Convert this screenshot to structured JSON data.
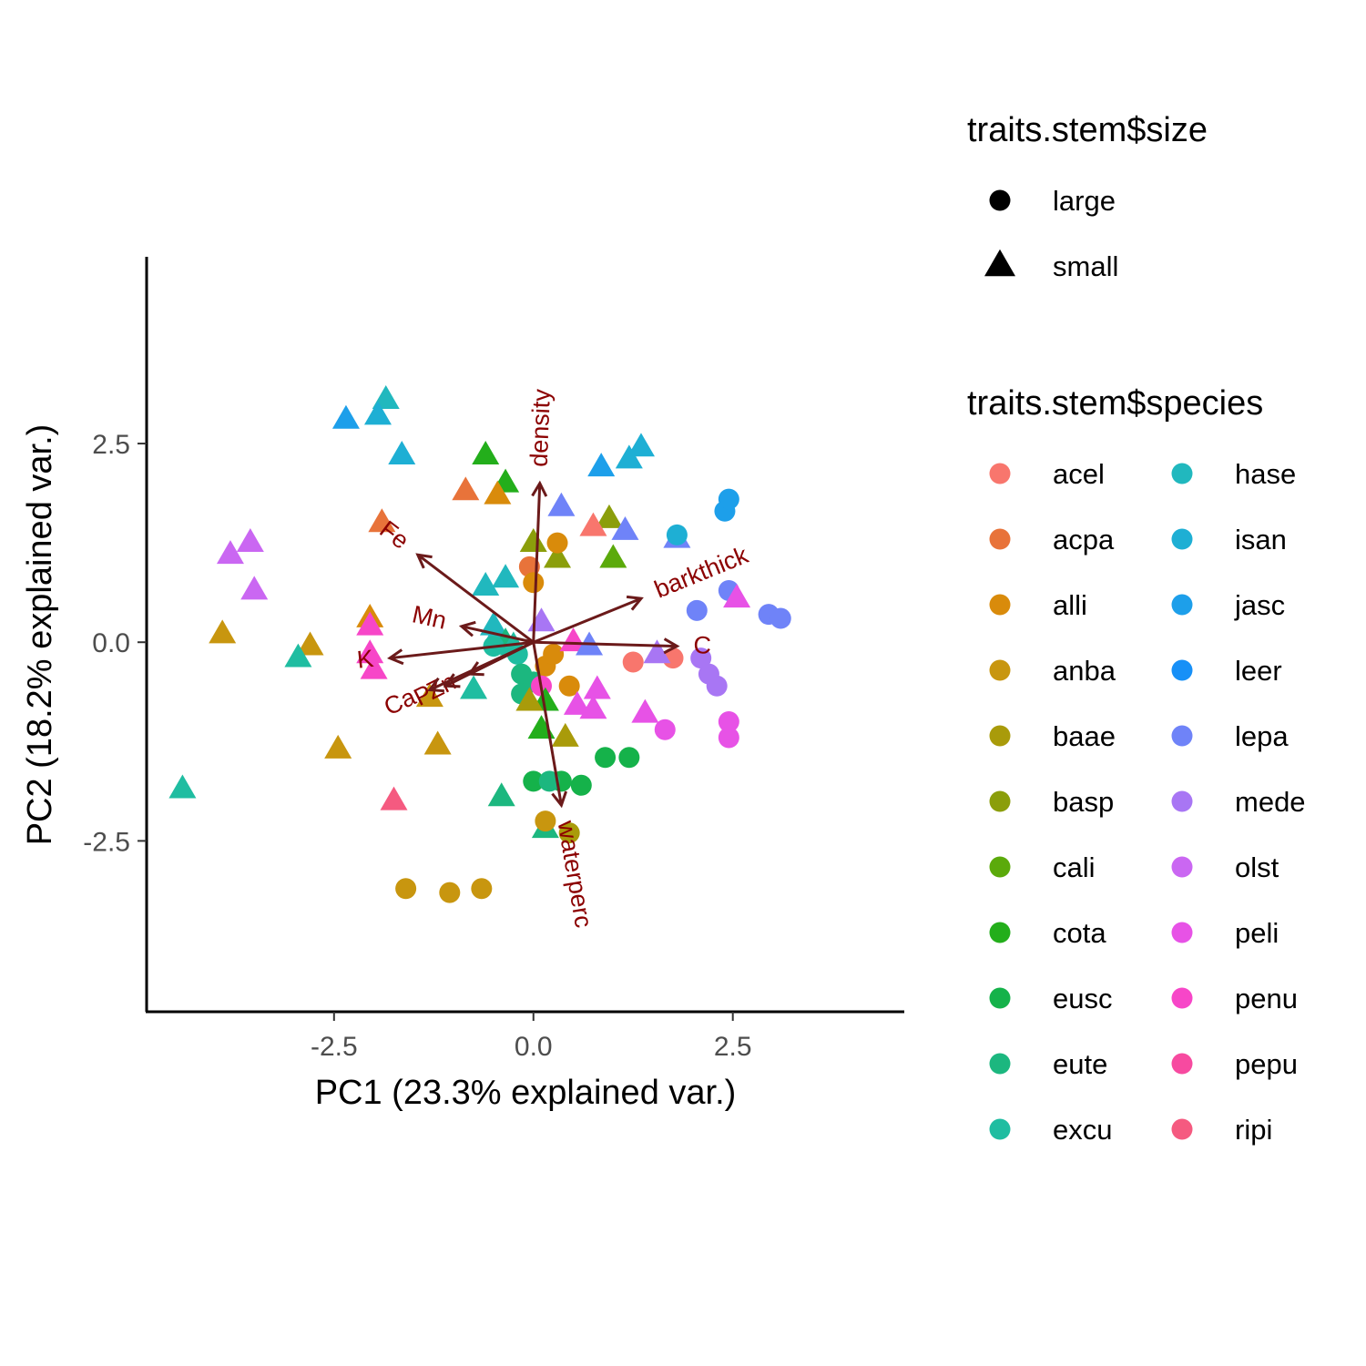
{
  "chart_data": {
    "type": "scatter",
    "title": "",
    "xlabel": "PC1 (23.3% explained var.)",
    "ylabel": "PC2 (18.2% explained var.)",
    "xlim": [
      -4.85,
      4.65
    ],
    "ylim": [
      -4.65,
      4.85
    ],
    "xticks": [
      -2.5,
      0.0,
      2.5
    ],
    "xtick_labels": [
      "-2.5",
      "0.0",
      "2.5"
    ],
    "yticks": [
      -2.5,
      0.0,
      2.5
    ],
    "ytick_labels": [
      "-2.5",
      "0.0",
      "2.5"
    ],
    "grid": false,
    "legend_position": "right",
    "size_legend": {
      "title": "traits.stem$size",
      "entries": [
        {
          "label": "large",
          "shape": "circle"
        },
        {
          "label": "small",
          "shape": "triangle"
        }
      ]
    },
    "species_legend": {
      "title": "traits.stem$species",
      "entries": [
        {
          "label": "acel",
          "color": "#F8766D"
        },
        {
          "label": "acpa",
          "color": "#E9842C"
        },
        {
          "label": "alli",
          "color": "#D69100"
        },
        {
          "label": "anba",
          "color": "#BC9D00"
        },
        {
          "label": "baae",
          "color": "#9CA700"
        },
        {
          "label": "basp",
          "color": "#6FB000"
        },
        {
          "label": "cali",
          "color": "#00B813"
        },
        {
          "label": "cota",
          "color": "#00BD61"
        },
        {
          "label": "eusc",
          "color": "#00C08E"
        },
        {
          "label": "eute",
          "color": "#00C0B4"
        },
        {
          "label": "excu",
          "color": "#00BDD4"
        },
        {
          "label": "hase",
          "color": "#00B5EE"
        },
        {
          "label": "isan",
          "color": "#00A7FF"
        },
        {
          "label": "jasc",
          "color": "#7F96FF"
        },
        {
          "label": "leer",
          "color": "#BC81FF"
        },
        {
          "label": "lepa",
          "color": "#E26EF7"
        },
        {
          "label": "mede",
          "color": "#F863DF"
        },
        {
          "label": "olst",
          "color": "#FF62BF"
        },
        {
          "label": "peli",
          "color": "#FF6A9A"
        },
        {
          "label": "penu",
          "color": "#F8766D"
        },
        {
          "label": "pepu",
          "color": "#E9842C"
        },
        {
          "label": "ripi",
          "color": "#D69100"
        }
      ]
    },
    "legend_colors": [
      "#F8766D",
      "#E8733A",
      "#D98B0B",
      "#C8960F",
      "#A99B0A",
      "#8B9E0B",
      "#5BAA0B",
      "#23AE1B",
      "#15B24A",
      "#1CB77F",
      "#1FBDA1",
      "#21B8BE",
      "#1EAFD4",
      "#1D9FEA",
      "#1790F7",
      "#6F83F8",
      "#A876F4",
      "#CA67F2",
      "#E752E6",
      "#F746C8",
      "#F74AA0",
      "#F55A80"
    ],
    "loadings": [
      {
        "label": "density",
        "x": 0.08,
        "y": 2.0
      },
      {
        "label": "barkthick",
        "x": 1.35,
        "y": 0.55
      },
      {
        "label": "C",
        "x": 1.8,
        "y": -0.05
      },
      {
        "label": "Fe",
        "x": -1.45,
        "y": 1.1
      },
      {
        "label": "Mn",
        "x": -0.9,
        "y": 0.2
      },
      {
        "label": "K",
        "x": -1.8,
        "y": -0.2
      },
      {
        "label": "Zn",
        "x": -0.8,
        "y": -0.4
      },
      {
        "label": "Ca",
        "x": -1.3,
        "y": -0.6
      },
      {
        "label": "P",
        "x": -1.1,
        "y": -0.55
      },
      {
        "label": "waterperc",
        "x": 0.35,
        "y": -2.05
      }
    ],
    "points": [
      {
        "species": "hase",
        "size": "small",
        "x": -1.85,
        "y": 3.05
      },
      {
        "species": "jasc",
        "size": "small",
        "x": -2.35,
        "y": 2.8
      },
      {
        "species": "isan",
        "size": "small",
        "x": -1.95,
        "y": 2.85
      },
      {
        "species": "isan",
        "size": "small",
        "x": -1.65,
        "y": 2.35
      },
      {
        "species": "cota",
        "size": "small",
        "x": -0.6,
        "y": 2.35
      },
      {
        "species": "cota",
        "size": "small",
        "x": -0.35,
        "y": 2.0
      },
      {
        "species": "acpa",
        "size": "small",
        "x": -0.85,
        "y": 1.9
      },
      {
        "species": "alli",
        "size": "small",
        "x": -0.45,
        "y": 1.85
      },
      {
        "species": "acpa",
        "size": "small",
        "x": -1.9,
        "y": 1.5
      },
      {
        "species": "lepa",
        "size": "small",
        "x": 0.35,
        "y": 1.7
      },
      {
        "species": "jasc",
        "size": "small",
        "x": 0.85,
        "y": 2.2
      },
      {
        "species": "isan",
        "size": "small",
        "x": 1.2,
        "y": 2.3
      },
      {
        "species": "isan",
        "size": "small",
        "x": 1.35,
        "y": 2.45
      },
      {
        "species": "basp",
        "size": "small",
        "x": 0.95,
        "y": 1.55
      },
      {
        "species": "lepa",
        "size": "small",
        "x": 1.15,
        "y": 1.4
      },
      {
        "species": "lepa",
        "size": "small",
        "x": 1.8,
        "y": 1.3
      },
      {
        "species": "acel",
        "size": "small",
        "x": 0.75,
        "y": 1.45
      },
      {
        "species": "basp",
        "size": "small",
        "x": 0.0,
        "y": 1.25
      },
      {
        "species": "basp",
        "size": "small",
        "x": 0.3,
        "y": 1.05
      },
      {
        "species": "cali",
        "size": "small",
        "x": 1.0,
        "y": 1.05
      },
      {
        "species": "acpa",
        "size": "large",
        "x": -0.05,
        "y": 0.95
      },
      {
        "species": "alli",
        "size": "large",
        "x": 0.0,
        "y": 0.75
      },
      {
        "species": "alli",
        "size": "large",
        "x": 0.3,
        "y": 1.25
      },
      {
        "species": "hase",
        "size": "small",
        "x": -0.6,
        "y": 0.7
      },
      {
        "species": "hase",
        "size": "small",
        "x": -0.35,
        "y": 0.8
      },
      {
        "species": "olst",
        "size": "small",
        "x": -3.8,
        "y": 1.1
      },
      {
        "species": "olst",
        "size": "small",
        "x": -3.55,
        "y": 1.25
      },
      {
        "species": "olst",
        "size": "small",
        "x": -3.5,
        "y": 0.65
      },
      {
        "species": "anba",
        "size": "small",
        "x": -3.9,
        "y": 0.1
      },
      {
        "species": "anba",
        "size": "small",
        "x": -2.8,
        "y": -0.05
      },
      {
        "species": "alli",
        "size": "small",
        "x": -2.05,
        "y": 0.3
      },
      {
        "species": "excu",
        "size": "small",
        "x": -2.95,
        "y": -0.2
      },
      {
        "species": "penu",
        "size": "small",
        "x": -2.05,
        "y": 0.2
      },
      {
        "species": "penu",
        "size": "small",
        "x": -2.05,
        "y": -0.15
      },
      {
        "species": "penu",
        "size": "small",
        "x": -2.0,
        "y": -0.35
      },
      {
        "species": "hase",
        "size": "small",
        "x": -0.45,
        "y": 0.1
      },
      {
        "species": "hase",
        "size": "small",
        "x": -0.5,
        "y": 0.2
      },
      {
        "species": "eute",
        "size": "small",
        "x": -0.35,
        "y": 0.0
      },
      {
        "species": "excu",
        "size": "small",
        "x": -0.25,
        "y": -0.05
      },
      {
        "species": "excu",
        "size": "large",
        "x": -0.5,
        "y": -0.05
      },
      {
        "species": "excu",
        "size": "large",
        "x": -0.2,
        "y": -0.15
      },
      {
        "species": "eute",
        "size": "large",
        "x": -0.15,
        "y": -0.4
      },
      {
        "species": "eute",
        "size": "large",
        "x": -0.15,
        "y": -0.65
      },
      {
        "species": "eute",
        "size": "large",
        "x": 0.0,
        "y": -0.5
      },
      {
        "species": "mede",
        "size": "small",
        "x": 0.1,
        "y": 0.25
      },
      {
        "species": "alli",
        "size": "large",
        "x": 0.15,
        "y": -0.3
      },
      {
        "species": "alli",
        "size": "large",
        "x": 0.25,
        "y": -0.15
      },
      {
        "species": "alli",
        "size": "large",
        "x": 0.45,
        "y": -0.55
      },
      {
        "species": "penu",
        "size": "large",
        "x": 0.1,
        "y": -0.55
      },
      {
        "species": "penu",
        "size": "small",
        "x": 0.5,
        "y": 0.0
      },
      {
        "species": "lepa",
        "size": "small",
        "x": 0.7,
        "y": -0.05
      },
      {
        "species": "acel",
        "size": "large",
        "x": 1.25,
        "y": -0.25
      },
      {
        "species": "acel",
        "size": "large",
        "x": 1.75,
        "y": -0.2
      },
      {
        "species": "mede",
        "size": "small",
        "x": 1.55,
        "y": -0.15
      },
      {
        "species": "lepa",
        "size": "large",
        "x": 2.05,
        "y": 0.4
      },
      {
        "species": "isan",
        "size": "large",
        "x": 1.8,
        "y": 1.35
      },
      {
        "species": "jasc",
        "size": "large",
        "x": 2.4,
        "y": 1.65
      },
      {
        "species": "jasc",
        "size": "large",
        "x": 2.45,
        "y": 1.8
      },
      {
        "species": "lepa",
        "size": "large",
        "x": 2.45,
        "y": 0.65
      },
      {
        "species": "peli",
        "size": "small",
        "x": 2.55,
        "y": 0.55
      },
      {
        "species": "lepa",
        "size": "large",
        "x": 2.95,
        "y": 0.35
      },
      {
        "species": "lepa",
        "size": "large",
        "x": 3.1,
        "y": 0.3
      },
      {
        "species": "mede",
        "size": "large",
        "x": 2.1,
        "y": -0.2
      },
      {
        "species": "mede",
        "size": "large",
        "x": 2.2,
        "y": -0.4
      },
      {
        "species": "mede",
        "size": "large",
        "x": 2.3,
        "y": -0.55
      },
      {
        "species": "peli",
        "size": "large",
        "x": 2.45,
        "y": -1.0
      },
      {
        "species": "peli",
        "size": "large",
        "x": 2.45,
        "y": -1.2
      },
      {
        "species": "peli",
        "size": "large",
        "x": 1.65,
        "y": -1.1
      },
      {
        "species": "peli",
        "size": "small",
        "x": 1.4,
        "y": -0.9
      },
      {
        "species": "peli",
        "size": "small",
        "x": 0.8,
        "y": -0.6
      },
      {
        "species": "peli",
        "size": "small",
        "x": 0.55,
        "y": -0.8
      },
      {
        "species": "peli",
        "size": "small",
        "x": 0.75,
        "y": -0.85
      },
      {
        "species": "cota",
        "size": "small",
        "x": 0.15,
        "y": -0.75
      },
      {
        "species": "cota",
        "size": "small",
        "x": 0.1,
        "y": -1.1
      },
      {
        "species": "baae",
        "size": "small",
        "x": 0.4,
        "y": -1.2
      },
      {
        "species": "baae",
        "size": "small",
        "x": -0.05,
        "y": -0.75
      },
      {
        "species": "anba",
        "size": "small",
        "x": -1.3,
        "y": -0.7
      },
      {
        "species": "anba",
        "size": "small",
        "x": -1.2,
        "y": -1.3
      },
      {
        "species": "anba",
        "size": "small",
        "x": -2.45,
        "y": -1.35
      },
      {
        "species": "excu",
        "size": "small",
        "x": -0.75,
        "y": -0.6
      },
      {
        "species": "eusc",
        "size": "large",
        "x": 0.9,
        "y": -1.45
      },
      {
        "species": "eusc",
        "size": "large",
        "x": 1.2,
        "y": -1.45
      },
      {
        "species": "eusc",
        "size": "large",
        "x": 0.0,
        "y": -1.75
      },
      {
        "species": "eusc",
        "size": "large",
        "x": 0.35,
        "y": -1.75
      },
      {
        "species": "eusc",
        "size": "large",
        "x": 0.6,
        "y": -1.8
      },
      {
        "species": "eute",
        "size": "large",
        "x": 0.2,
        "y": -1.75
      },
      {
        "species": "eute",
        "size": "small",
        "x": -0.4,
        "y": -1.95
      },
      {
        "species": "eute",
        "size": "small",
        "x": 0.15,
        "y": -2.35
      },
      {
        "species": "excu",
        "size": "small",
        "x": -4.4,
        "y": -1.85
      },
      {
        "species": "ripi",
        "size": "small",
        "x": -1.75,
        "y": -2.0
      },
      {
        "species": "anba",
        "size": "large",
        "x": 0.15,
        "y": -2.25
      },
      {
        "species": "baae",
        "size": "large",
        "x": 0.45,
        "y": -2.4
      },
      {
        "species": "anba",
        "size": "large",
        "x": -1.6,
        "y": -3.1
      },
      {
        "species": "anba",
        "size": "large",
        "x": -1.05,
        "y": -3.15
      },
      {
        "species": "anba",
        "size": "large",
        "x": -0.65,
        "y": -3.1
      }
    ]
  }
}
